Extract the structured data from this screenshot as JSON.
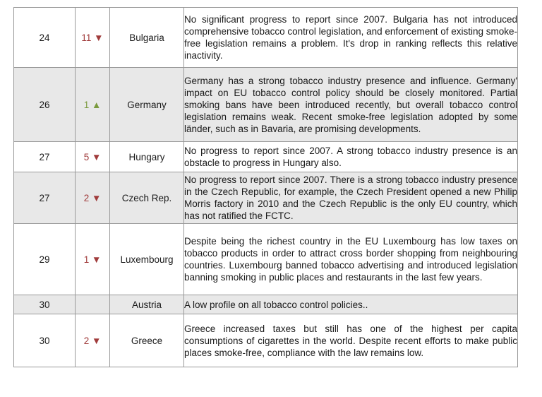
{
  "colors": {
    "down": "#a03b3b",
    "up": "#7a9a3d",
    "shaded_row": "#e8e8e8",
    "border": "#999999",
    "text": "#1a1a1a"
  },
  "icons": {
    "down_arrow": "▼",
    "up_arrow": "▲"
  },
  "table": {
    "columns": [
      "rank",
      "change",
      "country",
      "description"
    ],
    "rows": [
      {
        "rank": "24",
        "change_value": "11",
        "change_direction": "down",
        "country": "Bulgaria",
        "description": "No significant progress to report since 2007. Bulgaria has not introduced comprehensive tobacco control legislation, and enforcement of existing smoke-free legislation remains a problem. It's drop in ranking reflects this relative inactivity.",
        "shaded": false
      },
      {
        "rank": "26",
        "change_value": "1",
        "change_direction": "up",
        "country": "Germany",
        "description": "Germany has a strong tobacco industry presence and influence. Germany' impact on EU tobacco control policy should be closely monitored. Partial smoking bans have been introduced recently, but overall tobacco control legislation remains weak. Recent smoke-free legislation adopted by some länder, such as in Bavaria, are promising developments.",
        "shaded": true
      },
      {
        "rank": "27",
        "change_value": "5",
        "change_direction": "down",
        "country": "Hungary",
        "description": "No progress to report since 2007. A strong tobacco industry presence is an obstacle to progress in Hungary also.",
        "shaded": false
      },
      {
        "rank": "27",
        "change_value": "2",
        "change_direction": "down",
        "country": "Czech Rep.",
        "description": "No progress to report since 2007. There is a strong tobacco industry presence in the Czech Republic, for example, the Czech President opened a new Philip Morris factory in 2010 and the Czech Republic is the only EU country, which has not ratified the FCTC.",
        "shaded": true
      },
      {
        "rank": "29",
        "change_value": "1",
        "change_direction": "down",
        "country": "Luxembourg",
        "description": "Despite being the richest country in the EU Luxembourg has low taxes on tobacco products in order to attract cross border shopping from neighbouring countries. Luxembourg banned tobacco advertising and introduced legislation banning smoking in public places and restaurants in the last few years.",
        "shaded": false
      },
      {
        "rank": "30",
        "change_value": "",
        "change_direction": "",
        "country": "Austria",
        "description": "A low profile on all tobacco control policies..",
        "shaded": true
      },
      {
        "rank": "30",
        "change_value": "2",
        "change_direction": "down",
        "country": "Greece",
        "description": "Greece increased taxes but still has one of the highest per capita consumptions of cigarettes in the world. Despite recent efforts to make public places smoke-free, compliance with the law remains low.",
        "shaded": false
      }
    ]
  }
}
